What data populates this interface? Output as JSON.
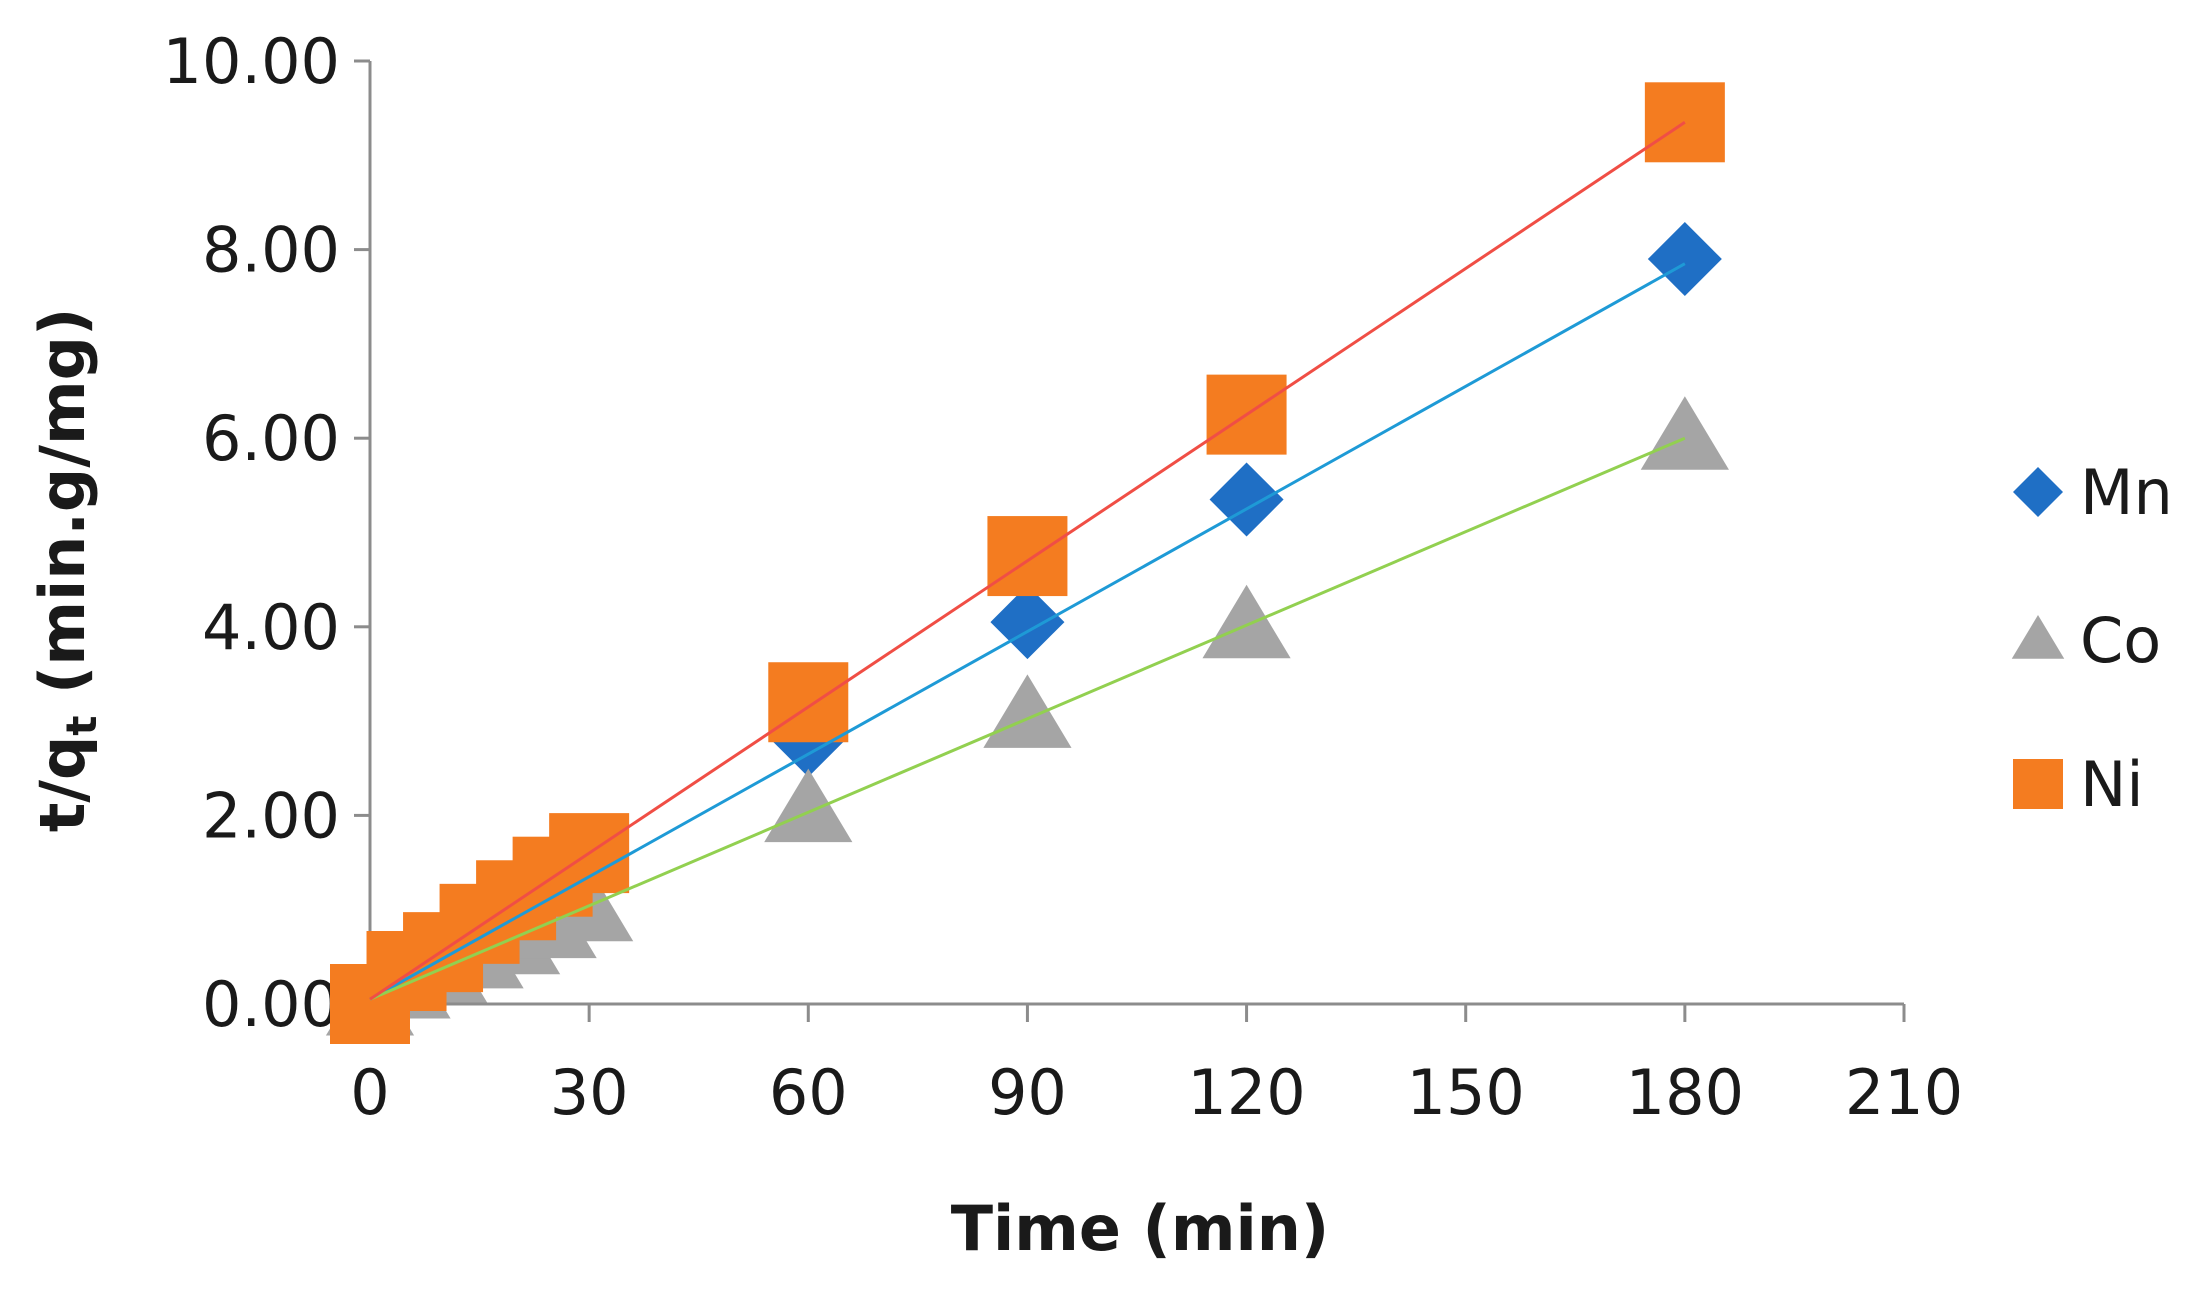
{
  "chart_data": {
    "type": "scatter",
    "title": "",
    "xlabel": "Time (min)",
    "ylabel_main": "t/q",
    "ylabel_sub": "t",
    "ylabel_units": " (min.g/mg)",
    "xlim": [
      0,
      210
    ],
    "ylim": [
      0,
      10
    ],
    "xticks": [
      0,
      30,
      60,
      90,
      120,
      150,
      180,
      210
    ],
    "xtick_labels": [
      "0",
      "30",
      "60",
      "90",
      "120",
      "150",
      "180",
      "210"
    ],
    "yticks": [
      0,
      2,
      4,
      6,
      8,
      10
    ],
    "ytick_labels": [
      "0.00",
      "2.00",
      "4.00",
      "6.00",
      "8.00",
      "10.00"
    ],
    "grid": false,
    "legend_position": "right",
    "series": [
      {
        "name": "Mn",
        "marker": "diamond",
        "color": "#1F6FC5",
        "line_color": "#1E9AD6",
        "x": [
          0,
          5,
          10,
          15,
          20,
          25,
          30,
          60,
          90,
          120,
          180
        ],
        "y": [
          0.0,
          0.25,
          0.5,
          0.75,
          1.0,
          1.25,
          1.45,
          2.8,
          4.05,
          5.35,
          7.9
        ],
        "trend": [
          [
            0,
            0.05
          ],
          [
            180,
            7.85
          ]
        ]
      },
      {
        "name": "Co",
        "marker": "triangle",
        "color": "#A5A5A5",
        "line_color": "#92D050",
        "x": [
          0,
          5,
          10,
          15,
          20,
          25,
          30,
          60,
          90,
          120,
          180
        ],
        "y": [
          0.0,
          0.18,
          0.35,
          0.5,
          0.65,
          0.82,
          1.0,
          2.05,
          3.05,
          4.0,
          6.0
        ],
        "trend": [
          [
            0,
            0.05
          ],
          [
            180,
            6.0
          ]
        ]
      },
      {
        "name": "Ni",
        "marker": "square",
        "color": "#F47C20",
        "line_color": "#F04E45",
        "x": [
          0,
          5,
          10,
          15,
          20,
          25,
          30,
          60,
          90,
          120,
          180
        ],
        "y": [
          0.0,
          0.35,
          0.55,
          0.85,
          1.1,
          1.35,
          1.6,
          3.2,
          4.75,
          6.25,
          9.35
        ],
        "trend": [
          [
            0,
            0.05
          ],
          [
            180,
            9.35
          ]
        ]
      }
    ]
  }
}
